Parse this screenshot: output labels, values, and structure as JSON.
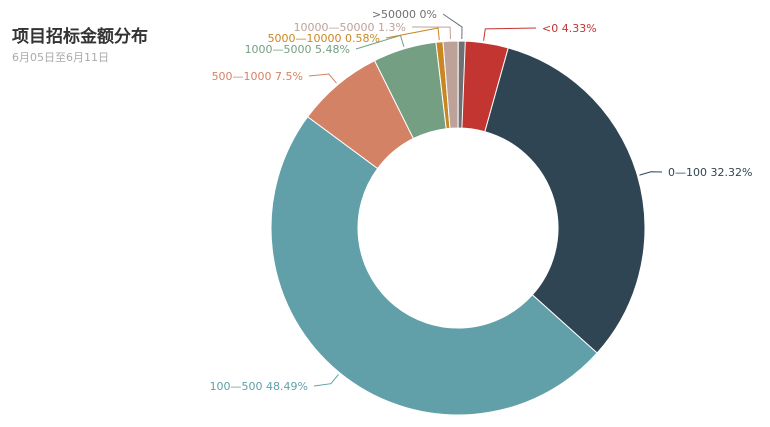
{
  "chart_data": {
    "type": "pie",
    "variant": "donut",
    "title": "项目招标金额分布",
    "subtitle": "6月05日至6月11日",
    "slices": [
      {
        "name": "<0",
        "value": 4.33,
        "label": "<0 4.33%",
        "color": "#c23531"
      },
      {
        "name": "0—100",
        "value": 32.32,
        "label": "0—100 32.32%",
        "color": "#2f4554"
      },
      {
        "name": "100—500",
        "value": 48.49,
        "label": "100—500 48.49%",
        "color": "#61a0a8"
      },
      {
        "name": "500—1000",
        "value": 7.5,
        "label": "500—1000 7.5%",
        "color": "#d48265"
      },
      {
        "name": "1000—5000",
        "value": 5.48,
        "label": "1000—5000 5.48%",
        "color": "#749f83"
      },
      {
        "name": "5000—10000",
        "value": 0.58,
        "label": "5000—10000 0.58%",
        "color": "#ca8622"
      },
      {
        "name": "10000—50000",
        "value": 1.3,
        "label": "10000—50000 1.3%",
        "color": "#bda29a"
      },
      {
        "name": ">50000",
        "value": 0,
        "label": ">50000 0%",
        "color": "#6e7074"
      }
    ]
  }
}
